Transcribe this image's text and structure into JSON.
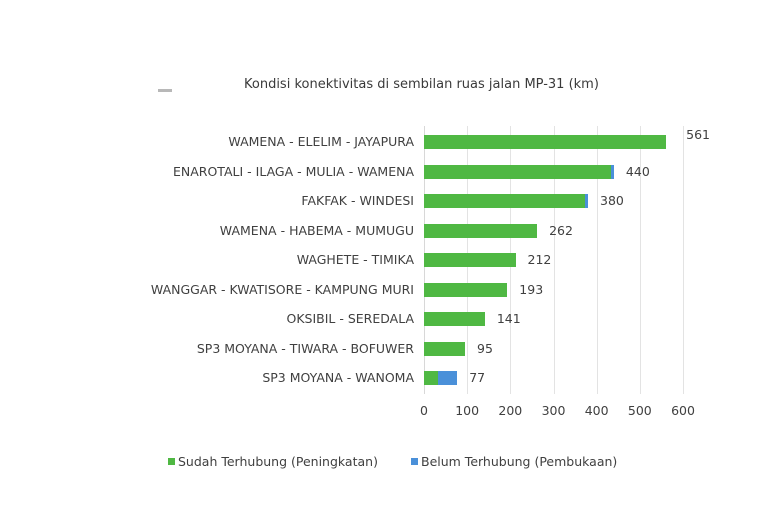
{
  "chart_data": {
    "type": "bar",
    "orientation": "horizontal",
    "stacked": true,
    "title": "Kondisi konektivitas di sembilan ruas jalan MP-31 (km)",
    "xlabel": "",
    "ylabel": "",
    "xlim": [
      0,
      600
    ],
    "x_ticks": [
      "0",
      "100",
      "200",
      "300",
      "400",
      "500",
      "600"
    ],
    "grid": true,
    "legend_position": "bottom",
    "categories": [
      "WAMENA - ELELIM - JAYAPURA",
      "ENAROTALI - ILAGA - MULIA - WAMENA",
      "FAKFAK - WINDESI",
      "WAMENA - HABEMA - MUMUGU",
      "WAGHETE - TIMIKA",
      "WANGGAR - KWATISORE - KAMPUNG MURI",
      "OKSIBIL - SEREDALA",
      "SP3 MOYANA - TIWARA - BOFUWER",
      "SP3 MOYANA - WANOMA"
    ],
    "series": [
      {
        "name": "Sudah Terhubung (Peningkatan)",
        "color": "#4fb843",
        "values": [
          561,
          434,
          373,
          262,
          212,
          193,
          141,
          95,
          32
        ]
      },
      {
        "name": "Belum Terhubung (Pembukaan)",
        "color": "#4a90d9",
        "values": [
          0,
          6,
          7,
          0,
          0,
          0,
          0,
          0,
          45
        ]
      }
    ],
    "totals": [
      561,
      440,
      380,
      262,
      212,
      193,
      141,
      95,
      77
    ],
    "total_labels": [
      "561",
      "440",
      "380",
      "262",
      "212",
      "193",
      "141",
      "95",
      "77"
    ]
  }
}
